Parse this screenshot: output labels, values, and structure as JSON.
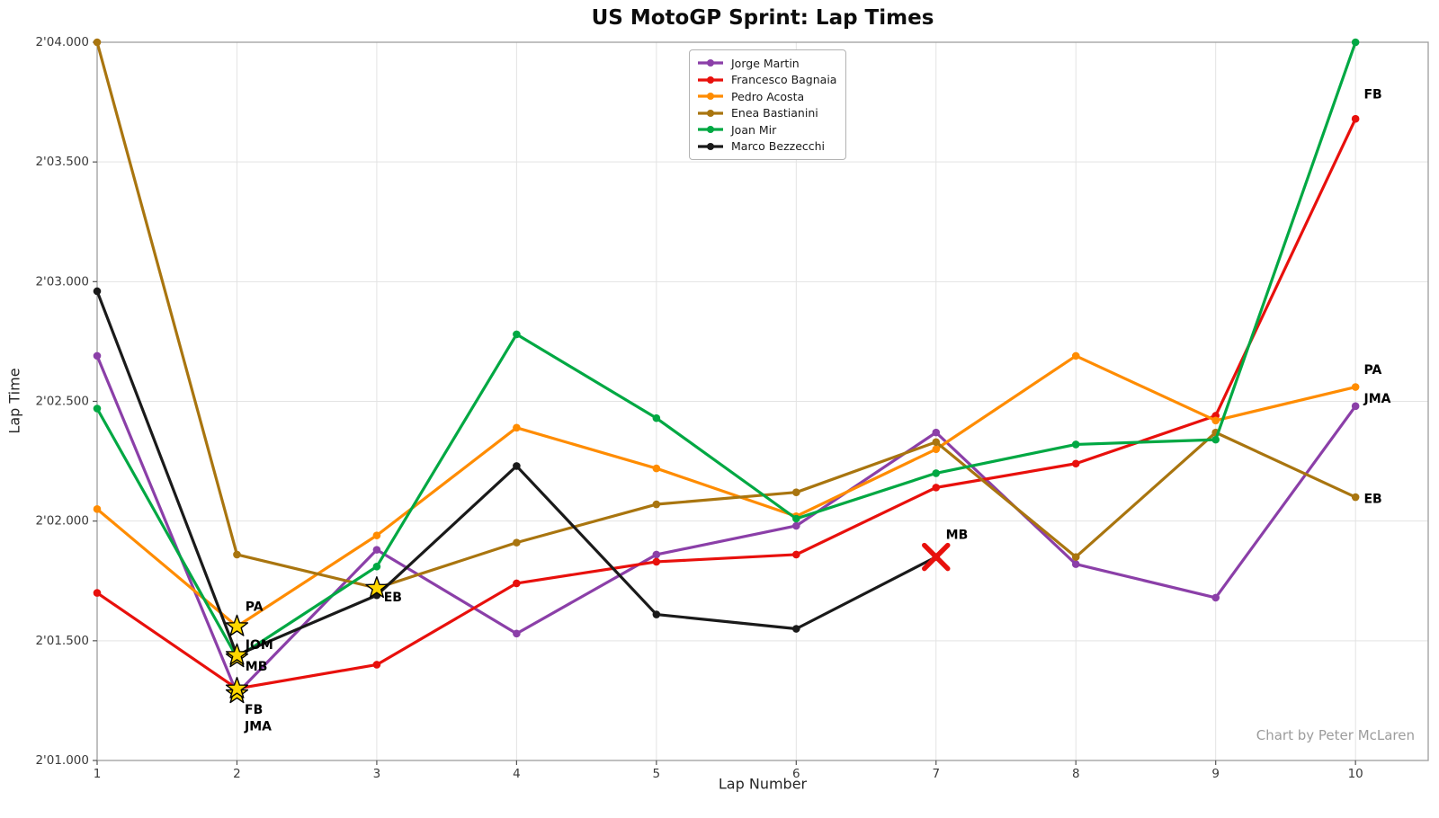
{
  "title": "US MotoGP Sprint: Lap Times",
  "xlabel": "Lap Number",
  "ylabel": "Lap Time",
  "credit": "Chart by Peter McLaren",
  "chart_data": {
    "type": "line",
    "x": [
      1,
      2,
      3,
      4,
      5,
      6,
      7,
      8,
      9,
      10
    ],
    "title": "US MotoGP Sprint: Lap Times",
    "xlabel": "Lap Number",
    "ylabel": "Lap Time",
    "xlim": [
      1,
      10.52
    ],
    "ylim": [
      121.0,
      124.0
    ],
    "grid": true,
    "legend_position": "upper center-left",
    "xticks": [
      1,
      2,
      3,
      4,
      5,
      6,
      7,
      8,
      9,
      10
    ],
    "yticks": [
      {
        "value": 121.0,
        "label": "2'01.000"
      },
      {
        "value": 121.5,
        "label": "2'01.500"
      },
      {
        "value": 122.0,
        "label": "2'02.000"
      },
      {
        "value": 122.5,
        "label": "2'02.500"
      },
      {
        "value": 123.0,
        "label": "2'03.000"
      },
      {
        "value": 123.5,
        "label": "2'03.500"
      },
      {
        "value": 124.0,
        "label": "2'04.000"
      }
    ],
    "series": [
      {
        "name": "Jorge Martin",
        "abbr": "JMA",
        "color": "#8B3FA8",
        "values": [
          122.69,
          121.28,
          121.88,
          121.53,
          121.86,
          121.98,
          122.37,
          121.82,
          121.68,
          122.48
        ],
        "fastest_lap": 2
      },
      {
        "name": "Francesco Bagnaia",
        "abbr": "FB",
        "color": "#E8100C",
        "values": [
          121.7,
          121.3,
          121.4,
          121.74,
          121.83,
          121.86,
          122.14,
          122.24,
          122.44,
          123.68
        ],
        "fastest_lap": 2
      },
      {
        "name": "Pedro Acosta",
        "abbr": "PA",
        "color": "#FF8C00",
        "values": [
          122.05,
          121.56,
          121.94,
          122.39,
          122.22,
          122.02,
          122.3,
          122.69,
          122.42,
          122.56
        ],
        "fastest_lap": 2
      },
      {
        "name": "Enea Bastianini",
        "abbr": "EB",
        "color": "#A9750F",
        "values": [
          124.0,
          121.86,
          121.72,
          121.91,
          122.07,
          122.12,
          122.33,
          121.85,
          122.37,
          122.1
        ],
        "fastest_lap": 3
      },
      {
        "name": "Joan Mir",
        "abbr": "JOM",
        "color": "#00A843",
        "values": [
          122.47,
          121.43,
          121.81,
          122.78,
          122.43,
          122.01,
          122.2,
          122.32,
          122.34,
          124.0
        ],
        "fastest_lap": 2
      },
      {
        "name": "Marco Bezzecchi",
        "abbr": "MB",
        "color": "#1A1A1A",
        "values": [
          122.96,
          121.44,
          121.69,
          122.23,
          121.61,
          121.55,
          121.85
        ],
        "fastest_lap": 2,
        "dnf_lap": 7
      }
    ],
    "markers": {
      "fastest_lap_star_color": "#FFD700",
      "fastest_lap_star_edge": "#000000",
      "crash_x_color": "#E8100C"
    },
    "annotations": [
      {
        "text": "PA",
        "lap": 2.06,
        "value": 121.64
      },
      {
        "text": "JOM",
        "lap": 2.06,
        "value": 121.48
      },
      {
        "text": "MB",
        "lap": 2.06,
        "value": 121.39
      },
      {
        "text": "FB",
        "lap": 2.055,
        "value": 121.21
      },
      {
        "text": "JMA",
        "lap": 2.055,
        "value": 121.14
      },
      {
        "text": "EB",
        "lap": 3.05,
        "value": 121.68
      },
      {
        "text": "MB",
        "lap": 7.07,
        "value": 121.94
      },
      {
        "text": "FB",
        "lap": 10.06,
        "value": 123.78
      },
      {
        "text": "PA",
        "lap": 10.06,
        "value": 122.63
      },
      {
        "text": "JMA",
        "lap": 10.06,
        "value": 122.51
      },
      {
        "text": "EB",
        "lap": 10.06,
        "value": 122.09
      }
    ]
  }
}
